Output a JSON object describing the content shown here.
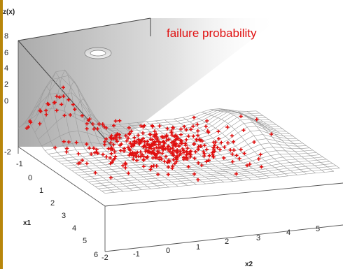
{
  "chart_data": {
    "type": "scatter",
    "subtype": "3d-surface-with-samples",
    "title": "",
    "annotation": "failure probability",
    "zlabel": "z(x)",
    "xlabel": "x1",
    "ylabel": "x2",
    "z_ticks": [
      "8",
      "6",
      "4",
      "2",
      "0",
      "-2"
    ],
    "x1_ticks": [
      "-2",
      "-1",
      "0",
      "1",
      "2",
      "3",
      "4",
      "5",
      "6"
    ],
    "x2_ticks": [
      "-2",
      "-1",
      "0",
      "1",
      "2",
      "3",
      "4",
      "5"
    ],
    "x1_range": [
      -2,
      6
    ],
    "x2_range": [
      -2,
      6
    ],
    "z_range": [
      -2,
      8
    ],
    "surface": "wireframe mesh with a tall peak near (x1=-1, x2=-1) and ridges toward x2=5",
    "failure_plane": "shaded plane above z=7",
    "grid": true,
    "legend": "none",
    "colors": {
      "points": "#e01010",
      "annotation": "#e01010",
      "mesh": "#9a9a9a",
      "plane": "#9e9e9e",
      "box": "#555555"
    },
    "samples": {
      "description": "Monte Carlo samples (red crosses) clustered around the centre of the domain",
      "approx_count": 420,
      "center": {
        "x1": 1.5,
        "x2": 1.5
      },
      "spread": {
        "x1": 1.3,
        "x2": 1.3
      }
    }
  }
}
